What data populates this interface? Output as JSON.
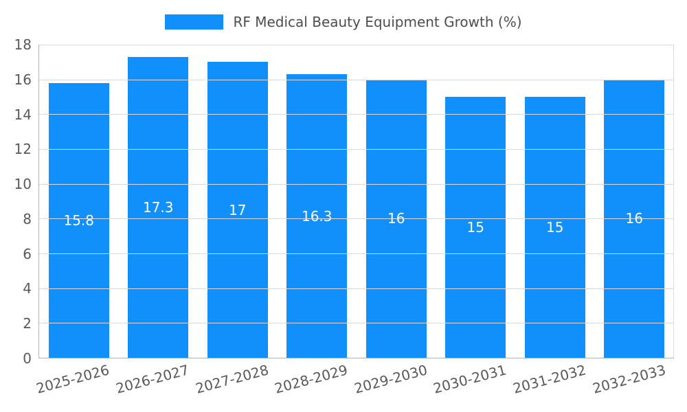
{
  "chart_data": {
    "type": "bar",
    "title": "RF Medical Beauty Equipment Growth (%)",
    "categories": [
      "2025-2026",
      "2026-2027",
      "2027-2028",
      "2028-2029",
      "2029-2030",
      "2030-2031",
      "2031-2032",
      "2032-2033"
    ],
    "values": [
      15.8,
      17.3,
      17,
      16.3,
      16,
      15,
      15,
      16
    ],
    "value_labels": [
      "15.8",
      "17.3",
      "17",
      "16.3",
      "16",
      "15",
      "15",
      "16"
    ],
    "xlabel": "",
    "ylabel": "",
    "ylim": [
      0,
      18
    ],
    "ytick_step": 2,
    "ytick_labels": [
      "0",
      "2",
      "4",
      "6",
      "8",
      "10",
      "12",
      "14",
      "16",
      "18"
    ],
    "grid": true,
    "legend_position": "top-center",
    "colors": {
      "bar": "#1190fb",
      "bar_label": "#ffffff",
      "axis_text": "#595959",
      "legend_text": "#4d4d4d",
      "gridline": "#d9d9d9",
      "axis_line": "#b3b3b3"
    }
  }
}
